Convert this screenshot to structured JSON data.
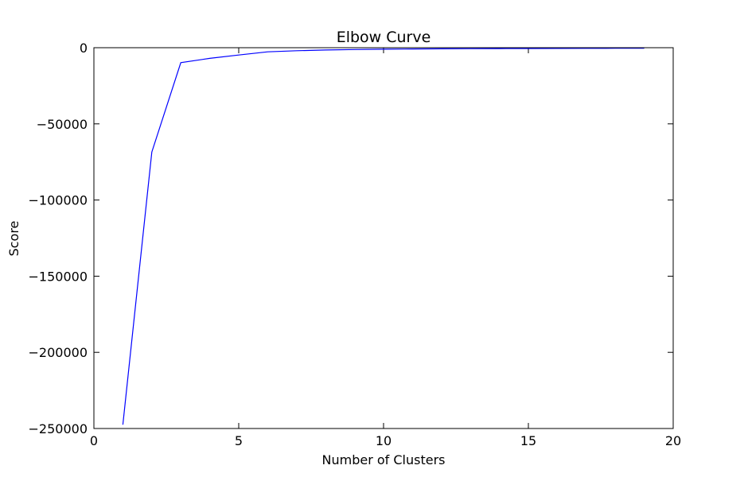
{
  "chart_data": {
    "type": "line",
    "title": "Elbow Curve",
    "xlabel": "Number of Clusters",
    "ylabel": "Score",
    "xlim": [
      0,
      20
    ],
    "ylim": [
      -250000,
      0
    ],
    "xticks": [
      0,
      5,
      10,
      15,
      20
    ],
    "xtick_labels": [
      "0",
      "5",
      "10",
      "15",
      "20"
    ],
    "yticks": [
      0,
      -50000,
      -100000,
      -150000,
      -200000,
      -250000
    ],
    "ytick_labels": [
      "0",
      "−50000",
      "−100000",
      "−150000",
      "−200000",
      "−250000"
    ],
    "grid": false,
    "legend": "none",
    "series": [
      {
        "color": "#0000ff",
        "x": [
          1,
          2,
          3,
          4,
          5,
          6,
          7,
          8,
          9,
          10,
          11,
          12,
          13,
          14,
          15,
          16,
          17,
          18,
          19
        ],
        "y": [
          -247500,
          -68500,
          -9800,
          -7000,
          -4800,
          -2700,
          -2000,
          -1500,
          -1200,
          -1000,
          -850,
          -750,
          -650,
          -580,
          -520,
          -460,
          -410,
          -370,
          -340
        ]
      }
    ]
  }
}
